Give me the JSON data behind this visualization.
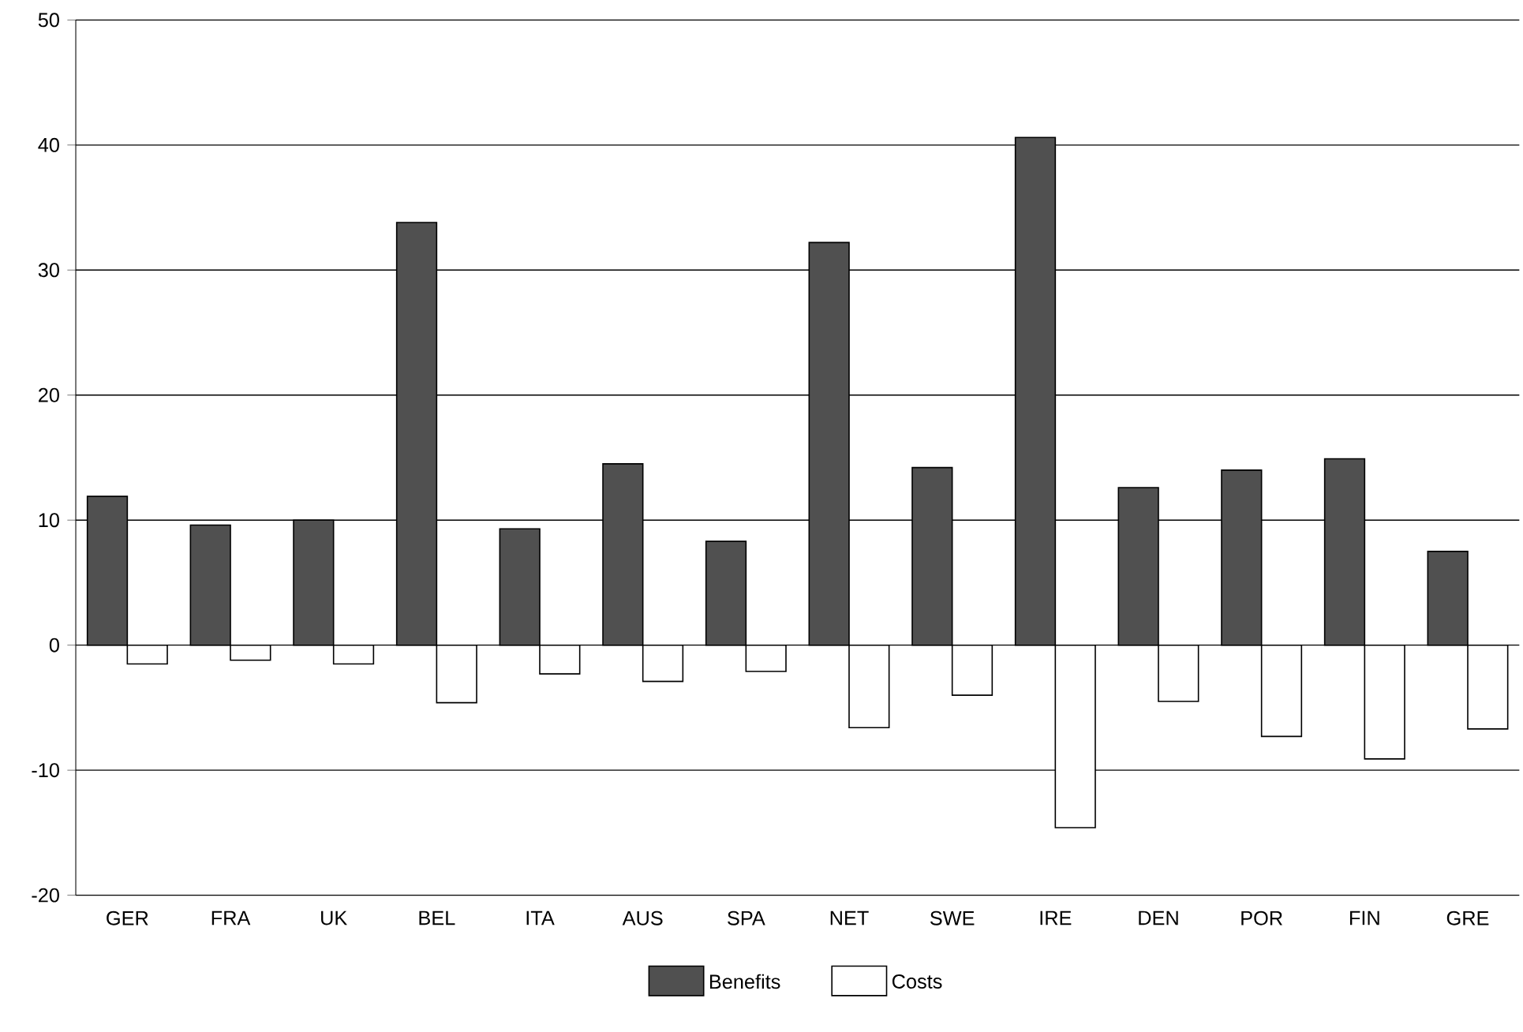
{
  "chart_data": {
    "type": "bar",
    "categories": [
      "GER",
      "FRA",
      "UK",
      "BEL",
      "ITA",
      "AUS",
      "SPA",
      "NET",
      "SWE",
      "IRE",
      "DEN",
      "POR",
      "FIN",
      "GRE"
    ],
    "series": [
      {
        "name": "Benefits",
        "color": "#505050",
        "values": [
          11.9,
          9.6,
          10.0,
          33.8,
          9.3,
          14.5,
          8.3,
          32.2,
          14.2,
          40.6,
          12.6,
          14.0,
          14.9,
          7.5
        ]
      },
      {
        "name": "Costs",
        "color": "#ffffff",
        "values": [
          -1.5,
          -1.2,
          -1.5,
          -4.6,
          -2.3,
          -2.9,
          -2.1,
          -6.6,
          -4.0,
          -14.6,
          -4.5,
          -7.3,
          -9.1,
          -6.7
        ]
      }
    ],
    "ylim": [
      -20,
      50
    ],
    "yticks": [
      -20,
      -10,
      0,
      10,
      20,
      30,
      40,
      50
    ],
    "grid": "y",
    "legend": "bottom"
  }
}
